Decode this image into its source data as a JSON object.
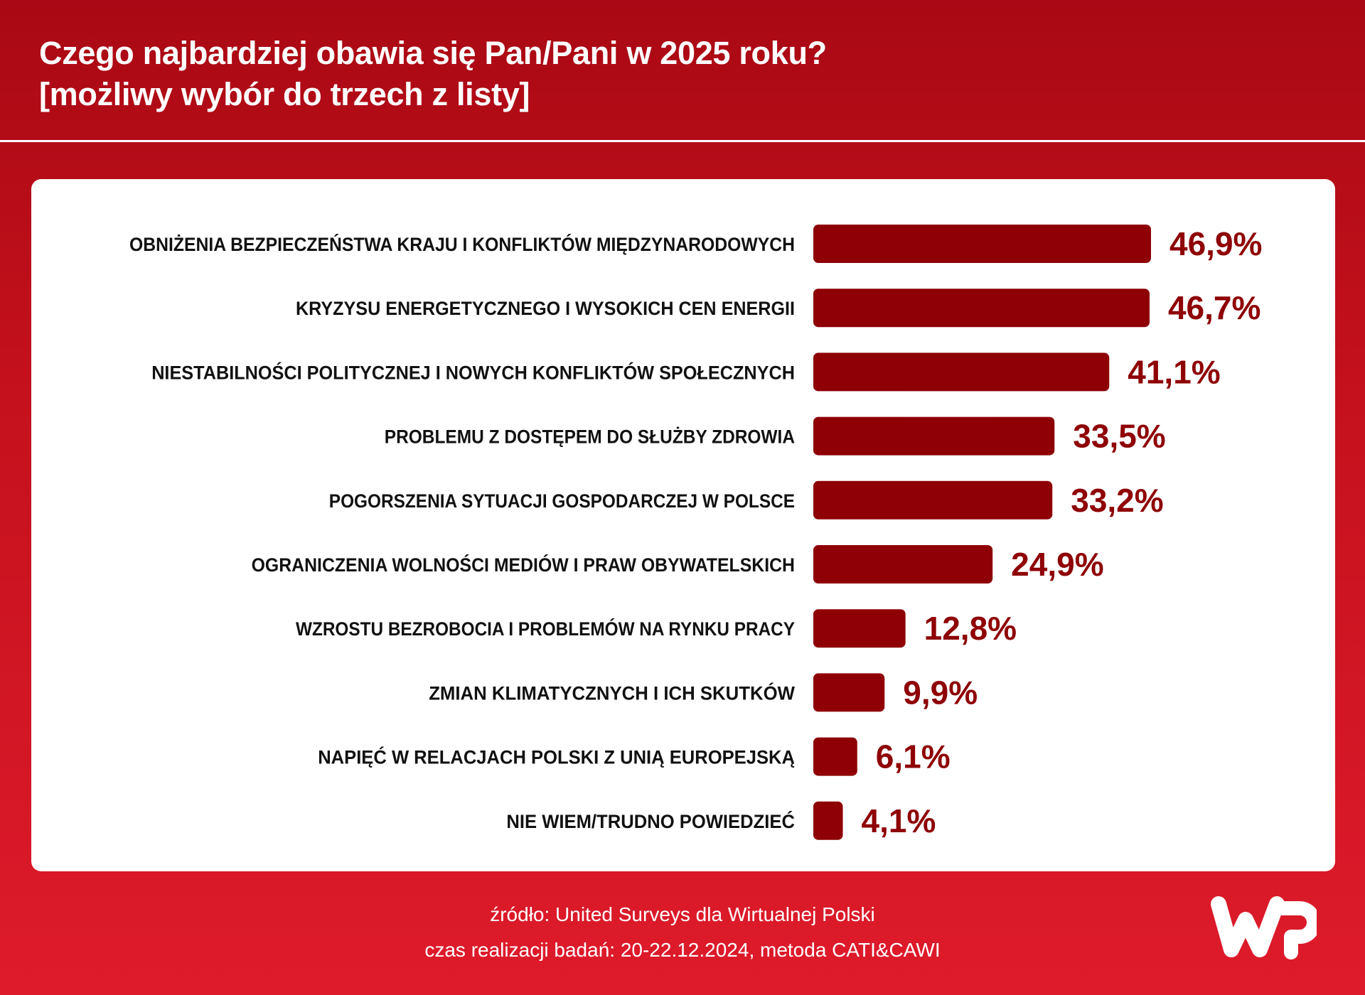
{
  "header": {
    "title_line1": "Czego najbardziej obawia się Pan/Pani w 2025 roku?",
    "title_line2": "[możliwy wybór do trzech z listy]"
  },
  "chart_data": {
    "type": "bar",
    "orientation": "horizontal",
    "categories": [
      "OBNIŻENIA BEZPIECZEŃSTWA KRAJU I KONFLIKTÓW MIĘDZYNARODOWYCH",
      "KRYZYSU ENERGETYCZNEGO I WYSOKICH CEN ENERGII",
      "NIESTABILNOŚCI POLITYCZNEJ I NOWYCH KONFLIKTÓW SPOŁECZNYCH",
      "PROBLEMU Z DOSTĘPEM DO SŁUŻBY ZDROWIA",
      "POGORSZENIA SYTUACJI GOSPODARCZEJ W POLSCE",
      "OGRANICZENIA WOLNOŚCI MEDIÓW I PRAW OBYWATELSKICH",
      "WZROSTU BEZROBOCIA I PROBLEMÓW NA RYNKU PRACY",
      "ZMIAN KLIMATYCZNYCH I ICH SKUTKÓW",
      "NAPIĘĆ W RELACJACH POLSKI Z UNIĄ EUROPEJSKĄ",
      "NIE WIEM/TRUDNO POWIEDZIEĆ"
    ],
    "values": [
      46.9,
      46.7,
      41.1,
      33.5,
      33.2,
      24.9,
      12.8,
      9.9,
      6.1,
      4.1
    ],
    "value_labels": [
      "46,9%",
      "46,7%",
      "41,1%",
      "33,5%",
      "33,2%",
      "24,9%",
      "12,8%",
      "9,9%",
      "6,1%",
      "4,1%"
    ],
    "unit": "%",
    "bar_color": "#8e0005",
    "grid": false,
    "legend": "none"
  },
  "footer": {
    "source": "źródło: United Surveys dla Wirtualnej Polski",
    "method": "czas realizacji badań: 20-22.12.2024, metoda CATI&CAWI"
  },
  "logo": {
    "icon": "wp-logo-icon",
    "text": "WP"
  },
  "colors": {
    "background_top": "#a90914",
    "background_bottom": "#de1b2b",
    "bar": "#8e0005",
    "value_text": "#8e0005",
    "label_text": "#111111",
    "card": "#ffffff"
  }
}
